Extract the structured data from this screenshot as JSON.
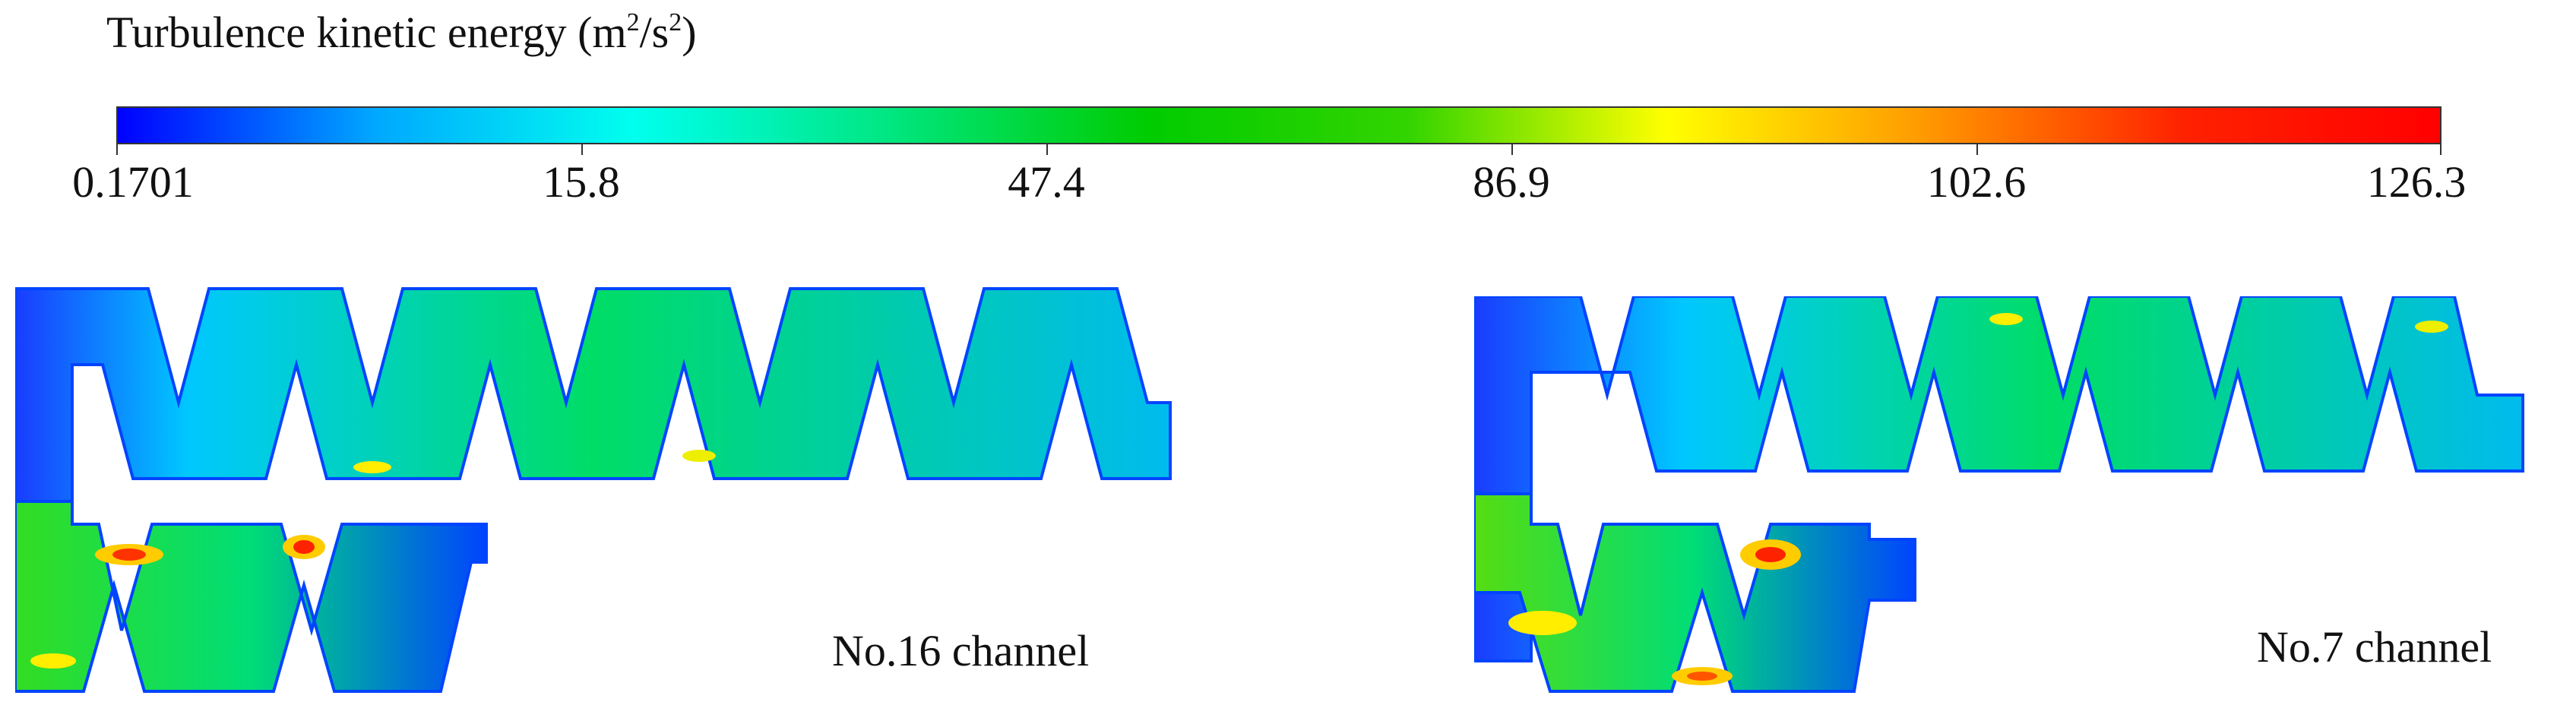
{
  "title": {
    "text": "Turbulence kinetic energy (m",
    "sup1": "2",
    "mid": "/s",
    "sup2": "2",
    "end": ")"
  },
  "colorbar": {
    "colors": [
      "#0000ff",
      "#00a8ff",
      "#00ffee",
      "#00e680",
      "#00cc00",
      "#33d400",
      "#ffff00",
      "#ff9900",
      "#ff2200",
      "#ff0000"
    ],
    "tick_labels": [
      "0.1701",
      "15.8",
      "47.4",
      "86.9",
      "102.6",
      "126.3"
    ]
  },
  "panels": [
    {
      "label": "No.16 channel"
    },
    {
      "label": "No.7 channel"
    }
  ]
}
